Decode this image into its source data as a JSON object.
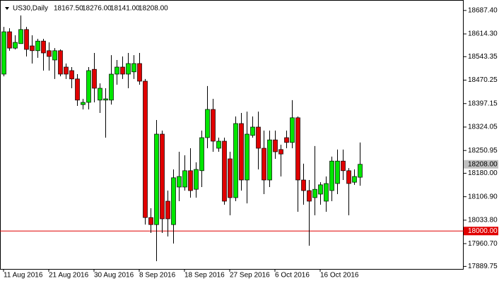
{
  "chart_data": {
    "type": "candlestick",
    "header": {
      "symbol": "US30,Daily",
      "ohlc": [
        "18167.50",
        "18276.00",
        "18141.00",
        "18208.00"
      ]
    },
    "categories": [
      "11 Aug 2016",
      null,
      null,
      null,
      null,
      null,
      null,
      null,
      "21 Aug 2016",
      null,
      null,
      null,
      null,
      null,
      null,
      null,
      "30 Aug 2016",
      null,
      null,
      null,
      null,
      null,
      null,
      null,
      "8 Sep 2016",
      null,
      null,
      null,
      null,
      null,
      null,
      null,
      "18 Sep 2016",
      null,
      null,
      null,
      null,
      null,
      null,
      null,
      "27 Sep 2016",
      null,
      null,
      null,
      null,
      null,
      null,
      null,
      "6 Oct 2016",
      null,
      null,
      null,
      null,
      null,
      null,
      null,
      "16 Oct 2016",
      null,
      null,
      null,
      null,
      null,
      null,
      null
    ],
    "open": [
      18489,
      18621,
      18570,
      18584,
      18628,
      18577,
      18562,
      18592,
      18562,
      18533,
      18562,
      18511,
      18500,
      18474,
      18394,
      18401,
      18504,
      18408,
      18408,
      18408,
      18489,
      18511,
      18489,
      18496,
      18522,
      18467,
      18042,
      18020,
      18302,
      18093,
      18020,
      18137,
      18137,
      18188,
      18130,
      18188,
      18291,
      18379,
      18258,
      18280,
      18225,
      18104,
      18335,
      18159,
      18298,
      18324,
      18258,
      18159,
      18284,
      18254,
      18291,
      18276,
      18353,
      18159,
      18126,
      18104,
      18115,
      18093,
      18126,
      18148,
      18218,
      18188,
      18152,
      18167.5
    ],
    "high": [
      18636,
      18632,
      18610,
      18672,
      18636,
      18610,
      18599,
      18599,
      18588,
      18570,
      18566,
      18522,
      18511,
      18489,
      18412,
      18511,
      18555,
      18460,
      18445,
      18548,
      18533,
      18544,
      18555,
      18548,
      18555,
      18474,
      18071,
      18346,
      18313,
      18126,
      18192,
      18247,
      18236,
      18258,
      18214,
      18313,
      18452,
      18412,
      18291,
      18291,
      18247,
      18357,
      18368,
      18372,
      18357,
      18372,
      18313,
      18313,
      18313,
      18269,
      18313,
      18408,
      18357,
      18210,
      18159,
      18265,
      18152,
      18170,
      18232,
      18254,
      18254,
      18196,
      18192,
      18276
    ],
    "low": [
      18482,
      18562,
      18566,
      18584,
      18544,
      18522,
      18540,
      18500,
      18500,
      18474,
      18482,
      18474,
      18445,
      18390,
      18379,
      18379,
      18401,
      18368,
      18291,
      18394,
      18456,
      18474,
      18445,
      18474,
      18456,
      18020,
      17994,
      17906,
      17994,
      17983,
      17961,
      18093,
      18126,
      18104,
      18104,
      18137,
      18258,
      18247,
      18247,
      18082,
      18049,
      18093,
      18126,
      18086,
      18291,
      18192,
      18115,
      18137,
      18225,
      18170,
      18258,
      18258,
      18060,
      18082,
      17954,
      18049,
      18082,
      18060,
      18093,
      18115,
      18159,
      18049,
      18144,
      18141
    ],
    "close": [
      18621,
      18570,
      18588,
      18628,
      18566,
      18562,
      18592,
      18555,
      18544,
      18562,
      18489,
      18489,
      18474,
      18408,
      18401,
      18500,
      18445,
      18445,
      18412,
      18489,
      18511,
      18489,
      18522,
      18522,
      18467,
      18042,
      18020,
      18302,
      18038,
      18038,
      18166,
      18170,
      18188,
      18126,
      18192,
      18291,
      18379,
      18280,
      18280,
      18093,
      18104,
      18335,
      18159,
      18302,
      18324,
      18258,
      18159,
      18284,
      18247,
      18240,
      18276,
      18353,
      18159,
      18126,
      18093,
      18130,
      18144,
      18148,
      18218,
      18218,
      18188,
      18148,
      18170,
      18208
    ],
    "up_color": "#00e600",
    "down_color": "#e00000",
    "ylim": [
      17881.8,
      18720
    ],
    "yticks": [
      {
        "value": 18687.4,
        "label": "18687.40"
      },
      {
        "value": 18614.3,
        "label": "18614.30"
      },
      {
        "value": 18543.35,
        "label": "18543.35"
      },
      {
        "value": 18470.25,
        "label": "18470.25"
      },
      {
        "value": 18397.15,
        "label": "18397.15"
      },
      {
        "value": 18324.05,
        "label": "18324.05"
      },
      {
        "value": 18250.95,
        "label": "18250.95"
      },
      {
        "value": 18180,
        "label": "18180.00"
      },
      {
        "value": 18106.9,
        "label": "18106.90"
      },
      {
        "value": 18033.8,
        "label": "18033.80"
      },
      {
        "value": 17960.7,
        "label": "17960.70"
      },
      {
        "value": 17889.75,
        "label": "17889.75"
      }
    ],
    "hline": {
      "value": 18000,
      "label": "18000.00",
      "color": "#e00000"
    },
    "last_price": {
      "value": 18208,
      "label": "18208.00",
      "color": "#c0c0c0"
    }
  }
}
